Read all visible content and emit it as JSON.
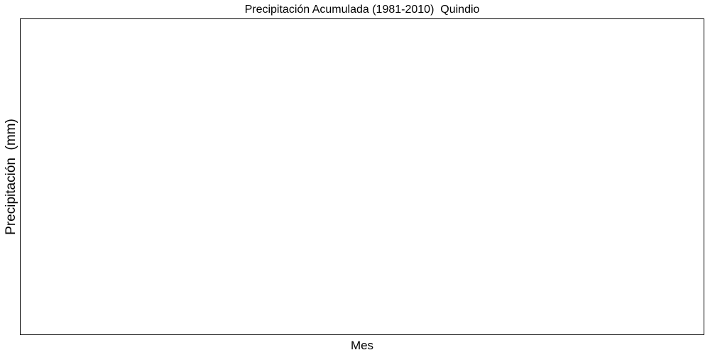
{
  "chart_data": {
    "type": "bar",
    "title": "Precipitación Acumulada (1981-2010)  Quindio",
    "xlabel": "Mes",
    "ylabel": "Precipitación  (mm)",
    "categories": [],
    "values": [],
    "grid": false,
    "legend": "none"
  }
}
